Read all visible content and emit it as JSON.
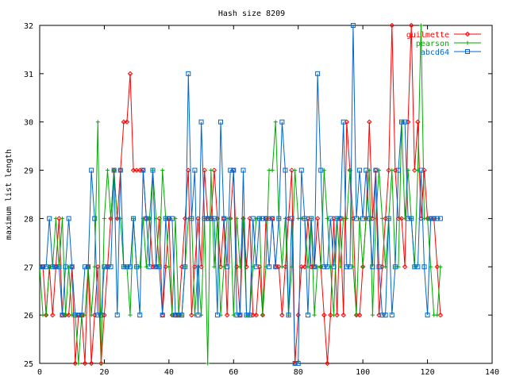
{
  "chart_data": {
    "type": "line",
    "title": "Hash size 8209",
    "xlabel": "",
    "ylabel": "maximum list length",
    "xlim": [
      0,
      140
    ],
    "ylim": [
      25,
      32
    ],
    "x_ticks": [
      0,
      20,
      40,
      60,
      80,
      100,
      120,
      140
    ],
    "y_ticks": [
      25,
      26,
      27,
      28,
      29,
      30,
      31,
      32
    ],
    "grid": false,
    "legend_position": "top-right",
    "series": [
      {
        "name": "guilmette",
        "color": "#ff0000",
        "marker": "diamond",
        "values": [
          27,
          27,
          26,
          27,
          26,
          27,
          28,
          26,
          26,
          26,
          27,
          25,
          26,
          26,
          25,
          27,
          25,
          26,
          27,
          25,
          26,
          27,
          28,
          29,
          28,
          29,
          30,
          30,
          31,
          29,
          29,
          29,
          29,
          28,
          28,
          27,
          27,
          28,
          26,
          27,
          28,
          26,
          26,
          26,
          27,
          28,
          29,
          26,
          27,
          28,
          27,
          29,
          28,
          28,
          29,
          28,
          27,
          28,
          26,
          28,
          29,
          27,
          26,
          28,
          27,
          28,
          26,
          26,
          27,
          26,
          28,
          28,
          28,
          27,
          27,
          26,
          27,
          28,
          29,
          25,
          26,
          27,
          27,
          28,
          27,
          27,
          28,
          27,
          26,
          25,
          26,
          28,
          26,
          28,
          26,
          30,
          29,
          28,
          26,
          26,
          27,
          28,
          30,
          28,
          29,
          26,
          27,
          28,
          29,
          32,
          29,
          28,
          28,
          27,
          30,
          32,
          29,
          30,
          28,
          29,
          28,
          28,
          28,
          27,
          26
        ]
      },
      {
        "name": "pearson",
        "color": "#00aa00",
        "marker": "plus",
        "values": [
          27,
          26,
          26,
          27,
          27,
          28,
          27,
          28,
          26,
          27,
          26,
          26,
          25,
          26,
          26,
          27,
          26,
          27,
          30,
          25,
          28,
          29,
          28,
          29,
          28,
          28,
          27,
          27,
          26,
          28,
          27,
          27,
          28,
          27,
          28,
          29,
          28,
          27,
          29,
          28,
          27,
          26,
          28,
          26,
          26,
          27,
          28,
          28,
          26,
          27,
          26,
          28,
          25,
          29,
          27,
          28,
          26,
          27,
          28,
          28,
          26,
          28,
          27,
          28,
          26,
          26,
          27,
          28,
          28,
          26,
          27,
          29,
          29,
          30,
          28,
          27,
          28,
          26,
          27,
          29,
          28,
          28,
          28,
          27,
          28,
          26,
          27,
          27,
          29,
          28,
          27,
          26,
          28,
          27,
          28,
          28,
          29,
          27,
          26,
          28,
          27,
          28,
          29,
          26,
          28,
          29,
          28,
          27,
          28,
          29,
          27,
          27,
          30,
          28,
          29,
          28,
          27,
          29,
          32,
          28,
          28,
          27,
          26,
          26,
          27
        ]
      },
      {
        "name": "abcd64",
        "color": "#0066cc",
        "marker": "square",
        "values": [
          27,
          27,
          27,
          28,
          27,
          27,
          27,
          26,
          27,
          28,
          27,
          26,
          26,
          26,
          27,
          27,
          29,
          28,
          26,
          26,
          27,
          27,
          27,
          29,
          26,
          29,
          27,
          27,
          27,
          28,
          27,
          26,
          29,
          28,
          27,
          29,
          27,
          27,
          26,
          28,
          28,
          28,
          26,
          26,
          26,
          27,
          31,
          28,
          29,
          26,
          30,
          28,
          28,
          28,
          28,
          26,
          30,
          28,
          27,
          29,
          29,
          26,
          26,
          29,
          26,
          26,
          28,
          27,
          28,
          28,
          28,
          27,
          28,
          27,
          28,
          30,
          29,
          26,
          28,
          25,
          25,
          29,
          28,
          26,
          28,
          27,
          31,
          29,
          27,
          27,
          28,
          27,
          28,
          28,
          30,
          27,
          27,
          32,
          28,
          29,
          28,
          29,
          28,
          27,
          29,
          27,
          26,
          26,
          28,
          26,
          27,
          29,
          30,
          30,
          28,
          28,
          27,
          27,
          29,
          27,
          26,
          28,
          28,
          28,
          28
        ]
      }
    ]
  }
}
